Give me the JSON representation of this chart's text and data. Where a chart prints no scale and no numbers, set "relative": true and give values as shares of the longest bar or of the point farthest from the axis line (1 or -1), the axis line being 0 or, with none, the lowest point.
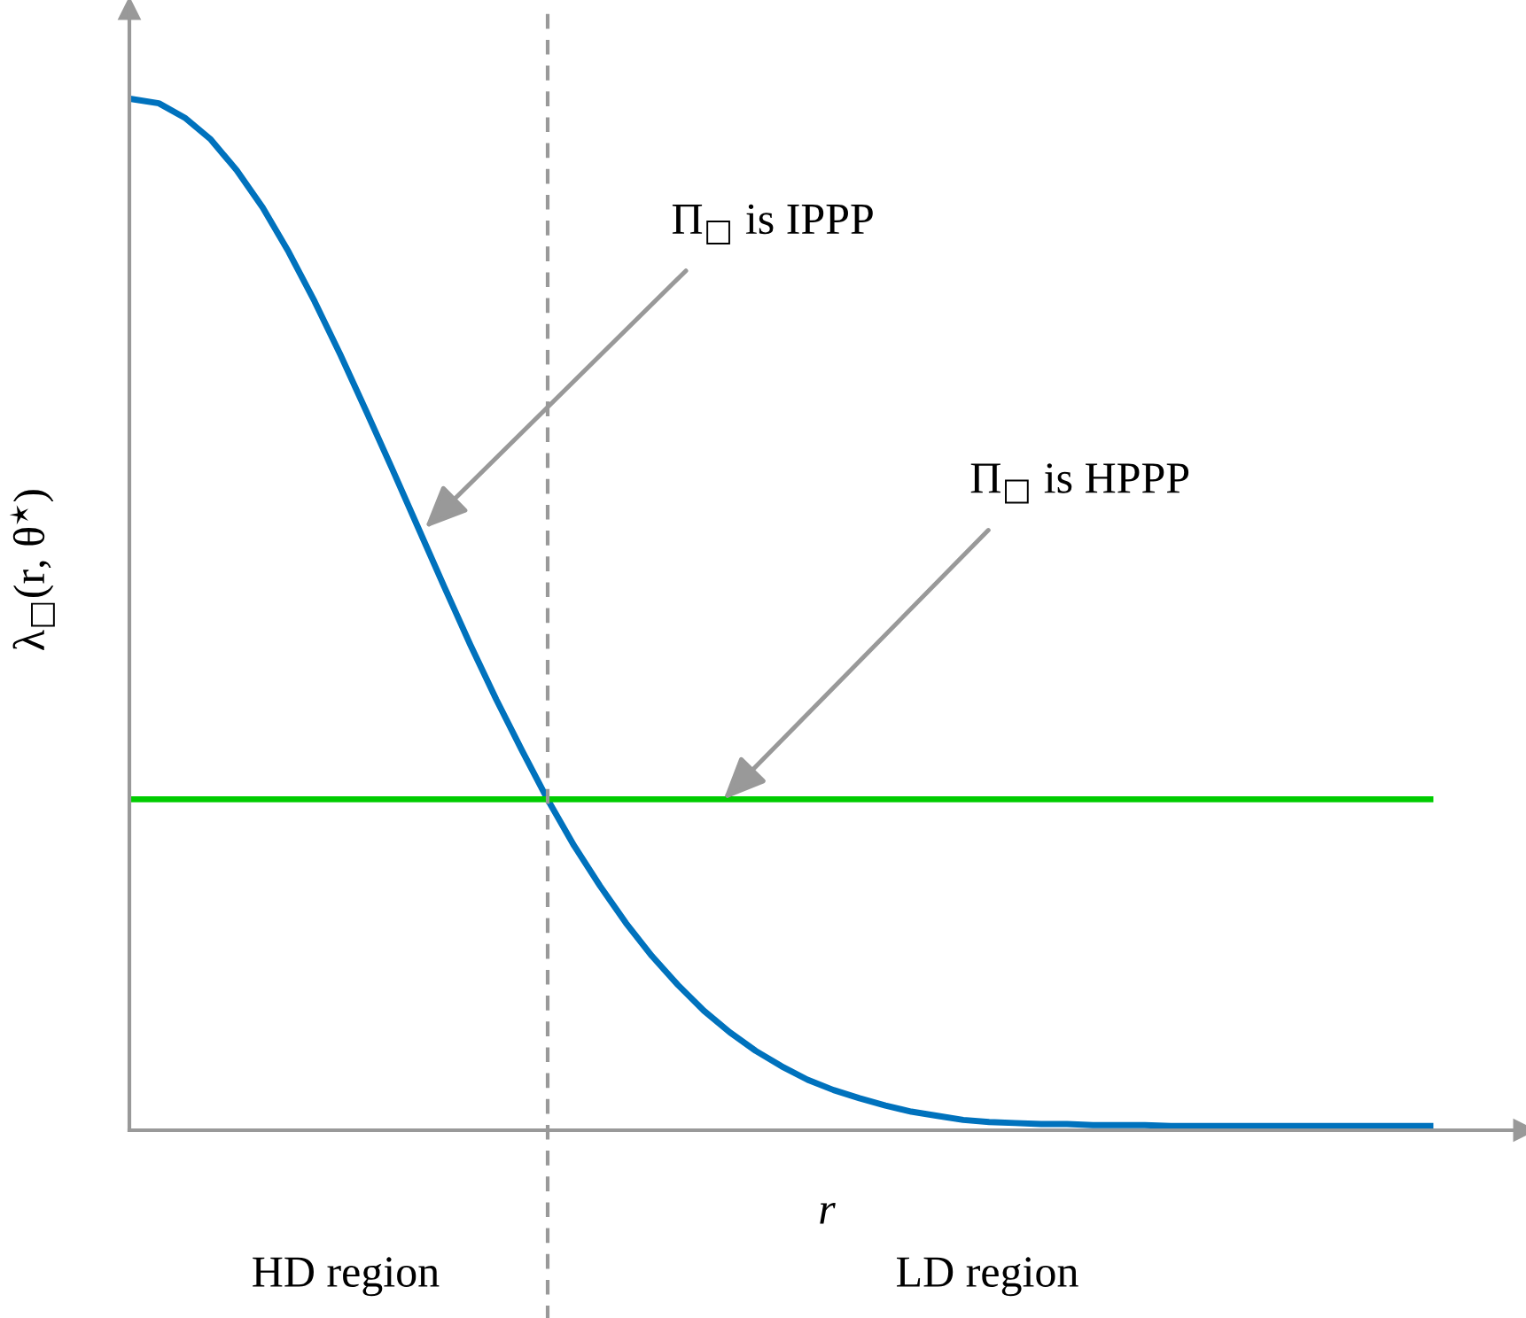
{
  "chart_data": {
    "type": "line",
    "relative": true,
    "xlabel": "r",
    "ylabel": "λ$_{□}$(r, θ$^{⋆}$)",
    "categories": [
      null,
      null,
      null,
      null,
      null,
      null,
      null,
      null,
      null,
      null,
      null,
      null,
      null,
      null,
      null,
      null,
      null,
      null,
      null,
      null,
      null,
      null,
      null,
      null,
      null,
      null,
      null,
      null,
      null,
      null,
      null,
      null,
      null,
      null,
      null,
      null,
      null,
      null,
      null,
      null,
      null,
      null,
      null,
      null,
      null,
      null,
      null,
      null,
      null,
      null,
      null
    ],
    "series": [
      {
        "color": "#0072bd",
        "values": [
          1.0,
          0.996,
          0.982,
          0.961,
          0.931,
          0.895,
          0.852,
          0.804,
          0.752,
          0.697,
          0.641,
          0.584,
          0.527,
          0.471,
          0.418,
          0.368,
          0.32,
          0.276,
          0.237,
          0.201,
          0.169,
          0.141,
          0.116,
          0.095,
          0.077,
          0.062,
          0.049,
          0.039,
          0.031,
          0.024,
          0.018,
          0.014,
          0.01,
          0.008,
          0.007,
          0.006,
          0.006,
          0.005,
          0.005,
          0.005,
          0.004,
          0.004,
          0.004,
          0.004,
          0.004,
          0.004,
          0.004,
          0.004,
          0.004,
          0.004,
          0.004
        ]
      },
      {
        "color": "#00cc00",
        "values": [
          0.321,
          0.321,
          0.321,
          0.321,
          0.321,
          0.321,
          0.321,
          0.321,
          0.321,
          0.321,
          0.321,
          0.321,
          0.321,
          0.321,
          0.321,
          0.321,
          0.321,
          0.321,
          0.321,
          0.321,
          0.321,
          0.321,
          0.321,
          0.321,
          0.321,
          0.321,
          0.321,
          0.321,
          0.321,
          0.321,
          0.321,
          0.321,
          0.321,
          0.321,
          0.321,
          0.321,
          0.321,
          0.321,
          0.321,
          0.321,
          0.321,
          0.321,
          0.321,
          0.321,
          0.321,
          0.321,
          0.321,
          0.321,
          0.321,
          0.321,
          0.321
        ]
      }
    ],
    "annotations": [
      "Π$_{□}$ is IPPP",
      "Π$_{□}$ is HPPP",
      "HD region",
      "LD region"
    ],
    "line_style": "solid",
    "marker": "none",
    "grid": false
  }
}
